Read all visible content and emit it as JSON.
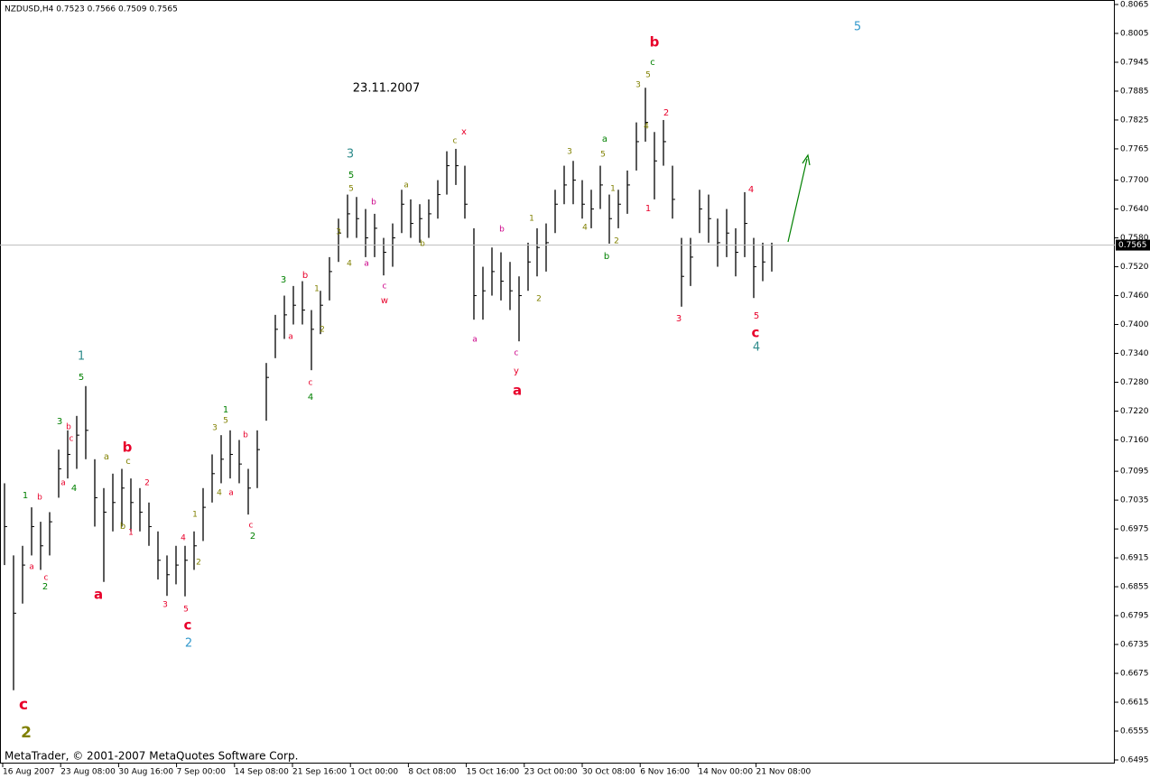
{
  "chart_data": {
    "type": "ohlc",
    "title": "NZDUSD,H4  0.7523 0.7566 0.7509 0.7565",
    "footer": "MetaTrader, © 2001-2007 MetaQuotes Software Corp.",
    "color": "#000000",
    "high": [
      0.707,
      0.692,
      0.694,
      0.702,
      0.699,
      0.701,
      0.714,
      0.718,
      0.721,
      0.7272,
      0.712,
      0.706,
      0.709,
      0.71,
      0.708,
      0.706,
      0.703,
      0.697,
      0.692,
      0.694,
      0.694,
      0.697,
      0.706,
      0.713,
      0.717,
      0.718,
      0.716,
      0.71,
      0.718,
      0.732,
      0.742,
      0.746,
      0.748,
      0.749,
      0.743,
      0.747,
      0.754,
      0.762,
      0.767,
      0.7665,
      0.764,
      0.763,
      0.758,
      0.761,
      0.768,
      0.766,
      0.765,
      0.766,
      0.77,
      0.776,
      0.7765,
      0.773,
      0.76,
      0.752,
      0.756,
      0.755,
      0.753,
      0.75,
      0.757,
      0.76,
      0.761,
      0.768,
      0.773,
      0.774,
      0.77,
      0.768,
      0.773,
      0.767,
      0.768,
      0.772,
      0.782,
      0.7892,
      0.78,
      0.7825,
      0.773,
      0.758,
      0.758,
      0.768,
      0.767,
      0.762,
      0.764,
      0.76,
      0.7675,
      0.758,
      0.757,
      0.757
    ],
    "low": [
      0.69,
      0.664,
      0.682,
      0.692,
      0.689,
      0.692,
      0.704,
      0.708,
      0.71,
      0.712,
      0.698,
      0.6865,
      0.697,
      0.698,
      0.697,
      0.697,
      0.694,
      0.687,
      0.6836,
      0.686,
      0.6835,
      0.689,
      0.695,
      0.703,
      0.707,
      0.708,
      0.707,
      0.7005,
      0.706,
      0.72,
      0.733,
      0.737,
      0.74,
      0.74,
      0.7305,
      0.738,
      0.745,
      0.753,
      0.758,
      0.758,
      0.754,
      0.754,
      0.7502,
      0.752,
      0.759,
      0.758,
      0.757,
      0.758,
      0.762,
      0.767,
      0.769,
      0.762,
      0.741,
      0.741,
      0.746,
      0.745,
      0.743,
      0.7365,
      0.747,
      0.75,
      0.751,
      0.759,
      0.765,
      0.765,
      0.762,
      0.76,
      0.764,
      0.7568,
      0.76,
      0.763,
      0.772,
      0.778,
      0.766,
      0.773,
      0.762,
      0.7437,
      0.748,
      0.759,
      0.757,
      0.752,
      0.754,
      0.75,
      0.754,
      0.7455,
      0.749,
      0.751
    ],
    "close": [
      0.698,
      0.68,
      0.69,
      0.698,
      0.694,
      0.699,
      0.71,
      0.713,
      0.717,
      0.718,
      0.704,
      0.701,
      0.703,
      0.706,
      0.703,
      0.701,
      0.698,
      0.691,
      0.688,
      0.69,
      0.691,
      0.694,
      0.702,
      0.709,
      0.712,
      0.713,
      0.711,
      0.706,
      0.714,
      0.729,
      0.739,
      0.742,
      0.744,
      0.743,
      0.739,
      0.744,
      0.751,
      0.759,
      0.763,
      0.762,
      0.758,
      0.76,
      0.755,
      0.758,
      0.765,
      0.761,
      0.762,
      0.763,
      0.767,
      0.773,
      0.773,
      0.765,
      0.746,
      0.747,
      0.751,
      0.749,
      0.747,
      0.746,
      0.753,
      0.756,
      0.757,
      0.765,
      0.769,
      0.77,
      0.765,
      0.764,
      0.769,
      0.762,
      0.765,
      0.769,
      0.778,
      0.782,
      0.774,
      0.778,
      0.766,
      0.75,
      0.754,
      0.764,
      0.762,
      0.757,
      0.759,
      0.755,
      0.761,
      0.752,
      0.753,
      0.7565
    ],
    "current_price": 0.7565,
    "ylim": [
      0.6495,
      0.8065
    ],
    "yticks": [
      0.8065,
      0.8005,
      0.7945,
      0.7885,
      0.7825,
      0.7765,
      {
        "value": 0.77,
        "label": "0.7700"
      },
      {
        "value": 0.764,
        "label": "0.7640"
      },
      {
        "value": 0.758,
        "label": "0.7580"
      },
      {
        "value": 0.752,
        "label": "0.7520"
      },
      {
        "value": 0.746,
        "label": "0.7460"
      },
      {
        "value": 0.74,
        "label": "0.7400"
      },
      {
        "value": 0.734,
        "label": "0.7340"
      },
      {
        "value": 0.728,
        "label": "0.7280"
      },
      {
        "value": 0.722,
        "label": "0.7220"
      },
      {
        "value": 0.716,
        "label": "0.7160"
      },
      0.7095,
      0.7035,
      0.6975,
      0.6915,
      0.6855,
      0.6795,
      0.6735,
      0.6675,
      0.6615,
      0.6555,
      0.6495
    ],
    "x_labels": [
      "16 Aug 2007",
      "23 Aug 08:00",
      "30 Aug 16:00",
      "7 Sep 00:00",
      "14 Sep 08:00",
      "21 Sep 16:00",
      "1 Oct 00:00",
      "8 Oct 08:00",
      "15 Oct 16:00",
      "23 Oct 00:00",
      "30 Oct 08:00",
      "6 Nov 16:00",
      "14 Nov 00:00",
      "21 Nov 08:00"
    ],
    "annotations": [
      {
        "text": "c",
        "color": "#e8002a"
      },
      {
        "text": "2",
        "color": "#808000"
      },
      {
        "text": "1",
        "color": "#2e8b8b"
      },
      {
        "text": "5",
        "color": "#008000"
      },
      {
        "text": "3",
        "color": "#008000"
      },
      {
        "text": "b",
        "color": "#e8002a"
      },
      {
        "text": "c",
        "color": "#e8002a"
      },
      {
        "text": "4",
        "color": "#008000"
      },
      {
        "text": "a",
        "color": "#e8002a"
      },
      {
        "text": "1",
        "color": "#008000"
      },
      {
        "text": "b",
        "color": "#e8002a"
      },
      {
        "text": "a",
        "color": "#e8002a"
      },
      {
        "text": "c",
        "color": "#e8002a"
      },
      {
        "text": "2",
        "color": "#008000"
      },
      {
        "text": "a",
        "color": "#e8002a"
      },
      {
        "text": "b",
        "color": "#e8002a"
      },
      {
        "text": "c",
        "color": "#808000"
      },
      {
        "text": "a",
        "color": "#808000"
      },
      {
        "text": "b",
        "color": "#808000"
      },
      {
        "text": "1",
        "color": "#e8002a"
      },
      {
        "text": "2",
        "color": "#e8002a"
      },
      {
        "text": "3",
        "color": "#e8002a"
      },
      {
        "text": "4",
        "color": "#e8002a"
      },
      {
        "text": "5",
        "color": "#e8002a"
      },
      {
        "text": "c",
        "color": "#e8002a"
      },
      {
        "text": "2",
        "color": "#3399cc"
      },
      {
        "text": "1",
        "color": "#808000"
      },
      {
        "text": "2",
        "color": "#808000"
      },
      {
        "text": "3",
        "color": "#808000"
      },
      {
        "text": "1",
        "color": "#008000"
      },
      {
        "text": "5",
        "color": "#808000"
      },
      {
        "text": "4",
        "color": "#808000"
      },
      {
        "text": "a",
        "color": "#e8002a"
      },
      {
        "text": "b",
        "color": "#e8002a"
      },
      {
        "text": "c",
        "color": "#e8002a"
      },
      {
        "text": "2",
        "color": "#008000"
      },
      {
        "text": "3",
        "color": "#008000"
      },
      {
        "text": "b",
        "color": "#e8002a"
      },
      {
        "text": "a",
        "color": "#e8002a"
      },
      {
        "text": "1",
        "color": "#808000"
      },
      {
        "text": "2",
        "color": "#808000"
      },
      {
        "text": "c",
        "color": "#e8002a"
      },
      {
        "text": "4",
        "color": "#008000"
      },
      {
        "text": "3",
        "color": "#2e8b8b"
      },
      {
        "text": "5",
        "color": "#008000"
      },
      {
        "text": "5",
        "color": "#808000"
      },
      {
        "text": "3",
        "color": "#808000"
      },
      {
        "text": "4",
        "color": "#808000"
      },
      {
        "text": "b",
        "color": "#cc0088"
      },
      {
        "text": "a",
        "color": "#cc0088"
      },
      {
        "text": "c",
        "color": "#cc0088"
      },
      {
        "text": "w",
        "color": "#e8002a"
      },
      {
        "text": "a",
        "color": "#808000"
      },
      {
        "text": "b",
        "color": "#808000"
      },
      {
        "text": "c",
        "color": "#808000"
      },
      {
        "text": "x",
        "color": "#e8002a"
      },
      {
        "text": "23.11.2007",
        "color": "#000000"
      },
      {
        "text": "b",
        "color": "#cc0088"
      },
      {
        "text": "a",
        "color": "#cc0088"
      },
      {
        "text": "1",
        "color": "#808000"
      },
      {
        "text": "2",
        "color": "#808000"
      },
      {
        "text": "c",
        "color": "#cc0088"
      },
      {
        "text": "y",
        "color": "#e8002a"
      },
      {
        "text": "a",
        "color": "#e8002a"
      },
      {
        "text": "3",
        "color": "#808000"
      },
      {
        "text": "4",
        "color": "#808000"
      },
      {
        "text": "a",
        "color": "#008000"
      },
      {
        "text": "5",
        "color": "#808000"
      },
      {
        "text": "1",
        "color": "#808000"
      },
      {
        "text": "2",
        "color": "#808000"
      },
      {
        "text": "b",
        "color": "#008000"
      },
      {
        "text": "3",
        "color": "#808000"
      },
      {
        "text": "5",
        "color": "#808000"
      },
      {
        "text": "c",
        "color": "#008000"
      },
      {
        "text": "b",
        "color": "#e8002a"
      },
      {
        "text": "4",
        "color": "#808000"
      },
      {
        "text": "2",
        "color": "#e8002a"
      },
      {
        "text": "1",
        "color": "#e8002a"
      },
      {
        "text": "3",
        "color": "#e8002a"
      },
      {
        "text": "4",
        "color": "#e8002a"
      },
      {
        "text": "5",
        "color": "#e8002a"
      },
      {
        "text": "c",
        "color": "#e8002a"
      },
      {
        "text": "4",
        "color": "#2e8b8b"
      },
      {
        "text": "5",
        "color": "#3399cc"
      }
    ]
  }
}
